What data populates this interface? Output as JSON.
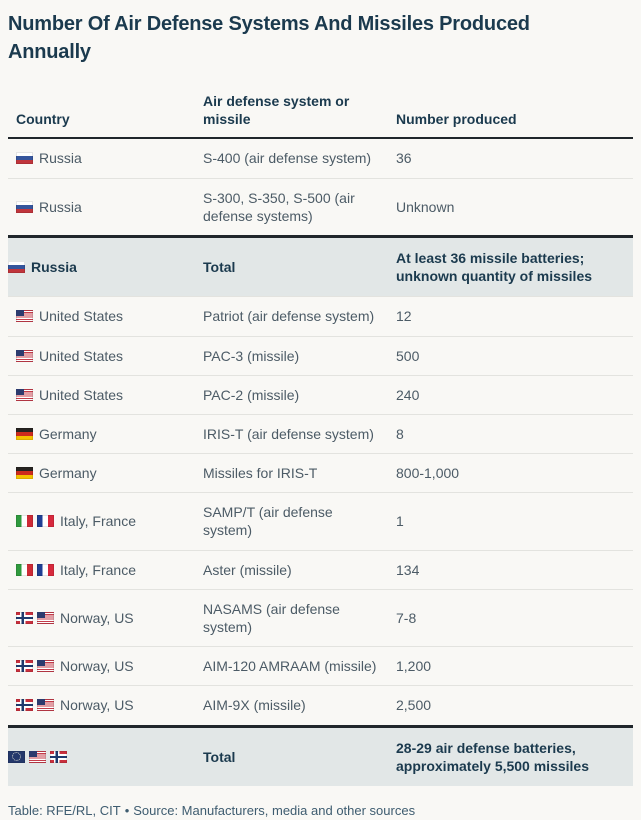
{
  "chart_data": {
    "type": "table",
    "title": "Number Of Air Defense Systems And Missiles Produced Annually",
    "columns": [
      "Country",
      "Air defense system or missile",
      "Number produced"
    ],
    "rows": [
      {
        "country": "Russia",
        "flags": [
          "russia"
        ],
        "system": "S-400 (air defense system)",
        "number": "36",
        "total": false
      },
      {
        "country": "Russia",
        "flags": [
          "russia"
        ],
        "system": "S-300, S-350, S-500 (air defense systems)",
        "number": "Unknown",
        "total": false
      },
      {
        "country": "Russia",
        "flags": [
          "russia"
        ],
        "system": "Total",
        "number": "At least 36 missile batteries; unknown quantity of missiles",
        "total": true
      },
      {
        "country": "United States",
        "flags": [
          "us"
        ],
        "system": "Patriot (air defense system)",
        "number": "12",
        "total": false
      },
      {
        "country": "United States",
        "flags": [
          "us"
        ],
        "system": "PAC-3 (missile)",
        "number": "500",
        "total": false
      },
      {
        "country": "United States",
        "flags": [
          "us"
        ],
        "system": "PAC-2 (missile)",
        "number": "240",
        "total": false
      },
      {
        "country": "Germany",
        "flags": [
          "germany"
        ],
        "system": "IRIS-T (air defense system)",
        "number": "8",
        "total": false
      },
      {
        "country": "Germany",
        "flags": [
          "germany"
        ],
        "system": "Missiles for IRIS-T",
        "number": "800-1,000",
        "total": false
      },
      {
        "country": "Italy, France",
        "flags": [
          "italy",
          "france"
        ],
        "system": "SAMP/T (air defense system)",
        "number": "1",
        "total": false
      },
      {
        "country": "Italy, France",
        "flags": [
          "italy",
          "france"
        ],
        "system": "Aster (missile)",
        "number": "134",
        "total": false
      },
      {
        "country": "Norway, US",
        "flags": [
          "norway",
          "us"
        ],
        "system": "NASAMS (air defense system)",
        "number": "7-8",
        "total": false
      },
      {
        "country": "Norway, US",
        "flags": [
          "norway",
          "us"
        ],
        "system": "AIM-120 AMRAAM (missile)",
        "number": "1,200",
        "total": false
      },
      {
        "country": "Norway, US",
        "flags": [
          "norway",
          "us"
        ],
        "system": "AIM-9X (missile)",
        "number": "2,500",
        "total": false
      },
      {
        "country": "",
        "flags": [
          "eu",
          "us",
          "norway"
        ],
        "system": "Total",
        "number": "28-29 air defense batteries, approximately 5,500 missiles",
        "total": true
      }
    ],
    "footnote": {
      "table_credit": "Table: RFE/RL, CIT",
      "bullet": "•",
      "source": "Source: Manufacturers, media and other sources"
    }
  },
  "colors": {
    "page_bg": "#f9f8f5",
    "title": "#1b3a4e",
    "body_text": "#4c5b66",
    "highlight_row_bg": "#e2e7e7",
    "heavy_rule": "#20262b",
    "footer_text": "#3e5c70"
  }
}
